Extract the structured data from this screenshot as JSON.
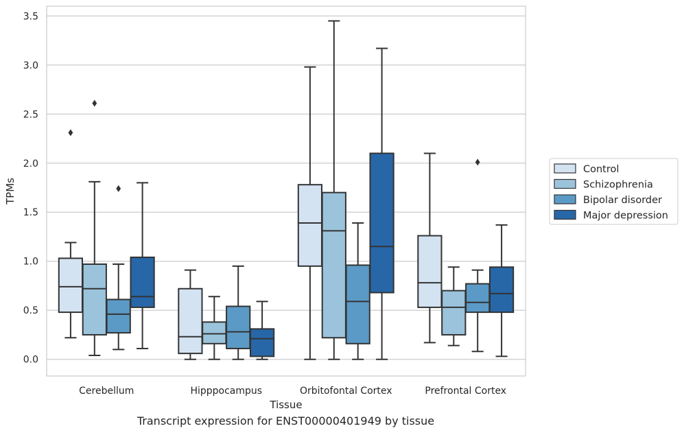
{
  "chart_data": {
    "type": "box",
    "xlabel": "Tissue",
    "ylabel": "TPMs",
    "caption": "Transcript expression for ENST00000401949 by tissue",
    "ylim": [
      -0.17,
      3.6
    ],
    "yticks": [
      0.0,
      0.5,
      1.0,
      1.5,
      2.0,
      2.5,
      3.0,
      3.5
    ],
    "grid": "horizontal",
    "legend_position": "right",
    "categories": [
      "Cerebellum",
      "Hipppocampus",
      "Orbitofontal Cortex",
      "Prefrontal Cortex"
    ],
    "series": [
      {
        "name": "Control",
        "color": "#d4e3f2",
        "boxes": [
          {
            "q1": 0.48,
            "median": 0.74,
            "q3": 1.03,
            "whisker_low": 0.22,
            "whisker_high": 1.19,
            "outliers": [
              2.31
            ]
          },
          {
            "q1": 0.06,
            "median": 0.23,
            "q3": 0.72,
            "whisker_low": 0.0,
            "whisker_high": 0.91,
            "outliers": []
          },
          {
            "q1": 0.95,
            "median": 1.39,
            "q3": 1.78,
            "whisker_low": 0.0,
            "whisker_high": 2.98,
            "outliers": []
          },
          {
            "q1": 0.53,
            "median": 0.78,
            "q3": 1.26,
            "whisker_low": 0.17,
            "whisker_high": 2.1,
            "outliers": []
          }
        ]
      },
      {
        "name": "Schizophrenia",
        "color": "#9bc4dc",
        "boxes": [
          {
            "q1": 0.25,
            "median": 0.72,
            "q3": 0.97,
            "whisker_low": 0.04,
            "whisker_high": 1.81,
            "outliers": [
              2.61
            ]
          },
          {
            "q1": 0.16,
            "median": 0.26,
            "q3": 0.38,
            "whisker_low": 0.0,
            "whisker_high": 0.64,
            "outliers": []
          },
          {
            "q1": 0.22,
            "median": 1.31,
            "q3": 1.7,
            "whisker_low": 0.0,
            "whisker_high": 3.45,
            "outliers": []
          },
          {
            "q1": 0.25,
            "median": 0.53,
            "q3": 0.7,
            "whisker_low": 0.14,
            "whisker_high": 0.94,
            "outliers": []
          }
        ]
      },
      {
        "name": "Bipolar disorder",
        "color": "#5b9ac6",
        "boxes": [
          {
            "q1": 0.27,
            "median": 0.46,
            "q3": 0.61,
            "whisker_low": 0.1,
            "whisker_high": 0.97,
            "outliers": [
              1.74
            ]
          },
          {
            "q1": 0.11,
            "median": 0.28,
            "q3": 0.54,
            "whisker_low": 0.0,
            "whisker_high": 0.95,
            "outliers": []
          },
          {
            "q1": 0.16,
            "median": 0.59,
            "q3": 0.96,
            "whisker_low": 0.0,
            "whisker_high": 1.39,
            "outliers": []
          },
          {
            "q1": 0.48,
            "median": 0.58,
            "q3": 0.77,
            "whisker_low": 0.08,
            "whisker_high": 0.91,
            "outliers": [
              2.01
            ]
          }
        ]
      },
      {
        "name": "Major depression",
        "color": "#2767a8",
        "boxes": [
          {
            "q1": 0.53,
            "median": 0.64,
            "q3": 1.04,
            "whisker_low": 0.11,
            "whisker_high": 1.8,
            "outliers": []
          },
          {
            "q1": 0.03,
            "median": 0.21,
            "q3": 0.31,
            "whisker_low": 0.0,
            "whisker_high": 0.59,
            "outliers": []
          },
          {
            "q1": 0.68,
            "median": 1.15,
            "q3": 2.1,
            "whisker_low": 0.0,
            "whisker_high": 3.17,
            "outliers": []
          },
          {
            "q1": 0.48,
            "median": 0.67,
            "q3": 0.94,
            "whisker_low": 0.03,
            "whisker_high": 1.37,
            "outliers": []
          }
        ]
      }
    ]
  }
}
